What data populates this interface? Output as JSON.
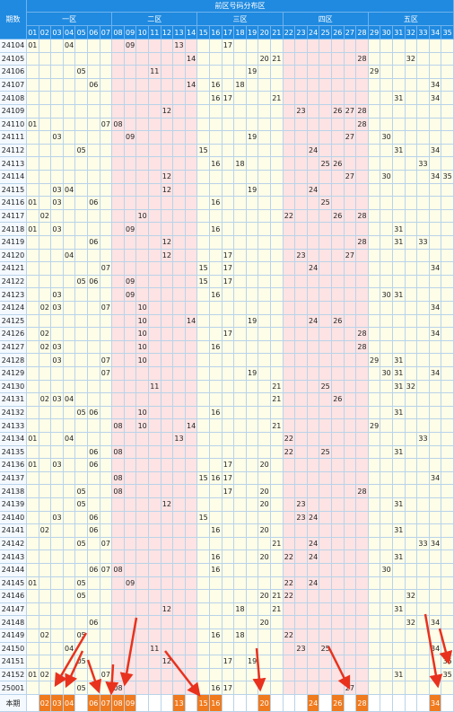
{
  "header": {
    "title": "前区号码分布区",
    "zones": [
      "一区",
      "二区",
      "三区",
      "四区",
      "五区"
    ],
    "period_label": "期数",
    "numbers": [
      "01",
      "02",
      "03",
      "04",
      "05",
      "06",
      "07",
      "08",
      "09",
      "10",
      "11",
      "12",
      "13",
      "14",
      "15",
      "16",
      "17",
      "18",
      "19",
      "20",
      "21",
      "22",
      "23",
      "24",
      "25",
      "26",
      "27",
      "28",
      "29",
      "30",
      "31",
      "32",
      "33",
      "34",
      "35"
    ]
  },
  "rows": [
    {
      "period": "24104",
      "numbers": [
        "01",
        "04",
        "09",
        "13",
        "17"
      ]
    },
    {
      "period": "24105",
      "numbers": [
        "14",
        "20",
        "21",
        "28",
        "32"
      ]
    },
    {
      "period": "24106",
      "numbers": [
        "05",
        "11",
        "19",
        "29"
      ]
    },
    {
      "period": "24107",
      "numbers": [
        "06",
        "14",
        "16",
        "18",
        "34"
      ]
    },
    {
      "period": "24108",
      "numbers": [
        "16",
        "17",
        "21",
        "31",
        "34"
      ]
    },
    {
      "period": "24109",
      "numbers": [
        "12",
        "23",
        "26",
        "27",
        "28"
      ]
    },
    {
      "period": "24110",
      "numbers": [
        "01",
        "07",
        "08",
        "28"
      ]
    },
    {
      "period": "24111",
      "numbers": [
        "03",
        "09",
        "19",
        "27",
        "30"
      ]
    },
    {
      "period": "24112",
      "numbers": [
        "05",
        "15",
        "24",
        "31",
        "34"
      ]
    },
    {
      "period": "24113",
      "numbers": [
        "16",
        "18",
        "25",
        "26",
        "33"
      ]
    },
    {
      "period": "24114",
      "numbers": [
        "12",
        "27",
        "30",
        "34",
        "35"
      ]
    },
    {
      "period": "24115",
      "numbers": [
        "03",
        "04",
        "12",
        "19",
        "24"
      ]
    },
    {
      "period": "24116",
      "numbers": [
        "01",
        "03",
        "06",
        "16",
        "25"
      ]
    },
    {
      "period": "24117",
      "numbers": [
        "02",
        "10",
        "22",
        "26",
        "28"
      ]
    },
    {
      "period": "24118",
      "numbers": [
        "01",
        "03",
        "09",
        "16",
        "31"
      ]
    },
    {
      "period": "24119",
      "numbers": [
        "06",
        "12",
        "28",
        "31",
        "33"
      ]
    },
    {
      "period": "24120",
      "numbers": [
        "04",
        "12",
        "17",
        "23",
        "27"
      ]
    },
    {
      "period": "24121",
      "numbers": [
        "07",
        "15",
        "17",
        "24",
        "34"
      ]
    },
    {
      "period": "24122",
      "numbers": [
        "05",
        "06",
        "09",
        "15",
        "17"
      ]
    },
    {
      "period": "24123",
      "numbers": [
        "03",
        "09",
        "16",
        "30",
        "31"
      ]
    },
    {
      "period": "24124",
      "numbers": [
        "02",
        "03",
        "07",
        "10",
        "34"
      ]
    },
    {
      "period": "24125",
      "numbers": [
        "10",
        "14",
        "19",
        "24",
        "26"
      ]
    },
    {
      "period": "24126",
      "numbers": [
        "02",
        "10",
        "17",
        "28",
        "34"
      ]
    },
    {
      "period": "24127",
      "numbers": [
        "02",
        "03",
        "10",
        "16",
        "28"
      ]
    },
    {
      "period": "24128",
      "numbers": [
        "03",
        "07",
        "10",
        "29",
        "31"
      ]
    },
    {
      "period": "24129",
      "numbers": [
        "07",
        "19",
        "30",
        "31",
        "34"
      ]
    },
    {
      "period": "24130",
      "numbers": [
        "11",
        "21",
        "25",
        "31",
        "32"
      ]
    },
    {
      "period": "24131",
      "numbers": [
        "02",
        "03",
        "04",
        "21",
        "26"
      ]
    },
    {
      "period": "24132",
      "numbers": [
        "05",
        "06",
        "10",
        "16",
        "31"
      ]
    },
    {
      "period": "24133",
      "numbers": [
        "08",
        "10",
        "14",
        "21",
        "29"
      ]
    },
    {
      "period": "24134",
      "numbers": [
        "01",
        "04",
        "13",
        "22",
        "33"
      ]
    },
    {
      "period": "24135",
      "numbers": [
        "06",
        "08",
        "22",
        "25",
        "31"
      ]
    },
    {
      "period": "24136",
      "numbers": [
        "01",
        "03",
        "06",
        "17",
        "20"
      ]
    },
    {
      "period": "24137",
      "numbers": [
        "08",
        "15",
        "16",
        "17",
        "34"
      ]
    },
    {
      "period": "24138",
      "numbers": [
        "05",
        "08",
        "17",
        "20",
        "28"
      ]
    },
    {
      "period": "24139",
      "numbers": [
        "05",
        "12",
        "20",
        "23",
        "31"
      ]
    },
    {
      "period": "24140",
      "numbers": [
        "03",
        "06",
        "15",
        "23",
        "24"
      ]
    },
    {
      "period": "24141",
      "numbers": [
        "02",
        "06",
        "16",
        "20",
        "31"
      ]
    },
    {
      "period": "24142",
      "numbers": [
        "05",
        "07",
        "21",
        "24",
        "33",
        "34"
      ]
    },
    {
      "period": "24143",
      "numbers": [
        "16",
        "20",
        "22",
        "24",
        "31"
      ]
    },
    {
      "period": "24144",
      "numbers": [
        "06",
        "07",
        "08",
        "16",
        "30"
      ]
    },
    {
      "period": "24145",
      "numbers": [
        "01",
        "05",
        "09",
        "22",
        "24"
      ]
    },
    {
      "period": "24146",
      "numbers": [
        "05",
        "20",
        "21",
        "22",
        "32"
      ]
    },
    {
      "period": "24147",
      "numbers": [
        "12",
        "18",
        "21",
        "31"
      ]
    },
    {
      "period": "24148",
      "numbers": [
        "06",
        "20",
        "32",
        "34"
      ]
    },
    {
      "period": "24149",
      "numbers": [
        "02",
        "05",
        "16",
        "18",
        "22"
      ]
    },
    {
      "period": "24150",
      "numbers": [
        "04",
        "11",
        "23",
        "25",
        "34"
      ]
    },
    {
      "period": "24151",
      "numbers": [
        "05",
        "12",
        "17",
        "19",
        "35"
      ]
    },
    {
      "period": "24152",
      "numbers": [
        "01",
        "02",
        "07",
        "31",
        "35"
      ]
    },
    {
      "period": "25001",
      "numbers": [
        "05",
        "08",
        "16",
        "17",
        "27"
      ]
    }
  ],
  "current": {
    "label": "本期",
    "numbers": [
      "02",
      "03",
      "04",
      "06",
      "07",
      "08",
      "09",
      "13",
      "15",
      "16",
      "20",
      "24",
      "26",
      "28",
      "34"
    ]
  }
}
